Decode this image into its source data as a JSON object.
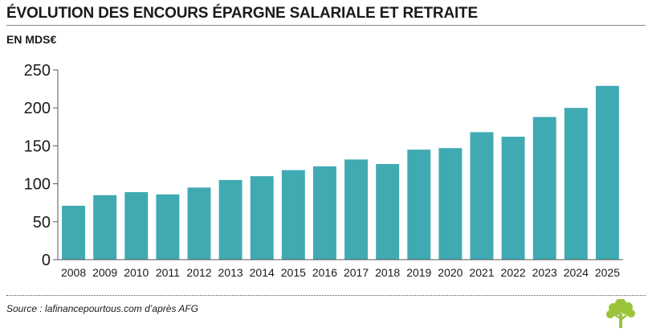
{
  "title": "ÉVOLUTION DES ENCOURS ÉPARGNE SALARIALE ET RETRAITE",
  "unit_label": "EN MDS€",
  "source": "Source : lafinancepourtous.com d’après AFG",
  "colors": {
    "bar": "#40AAB3",
    "logo": "#9BC43B",
    "text": "#1a1a1a",
    "axis": "#555555"
  },
  "logo_icon": "tree-icon",
  "chart_data": {
    "type": "bar",
    "categories": [
      "2008",
      "2009",
      "2010",
      "2011",
      "2012",
      "2013",
      "2014",
      "2015",
      "2016",
      "2017",
      "2018",
      "2019",
      "2020",
      "2021",
      "2022",
      "2023",
      "2024",
      "2025"
    ],
    "values": [
      71,
      85,
      89,
      86,
      95,
      105,
      110,
      118,
      123,
      132,
      126,
      145,
      147,
      168,
      162,
      188,
      200,
      229
    ],
    "ylim": [
      0,
      250
    ],
    "yticks": [
      0,
      50,
      100,
      150,
      200,
      250
    ],
    "grid": false,
    "xlabel": "",
    "ylabel": ""
  }
}
